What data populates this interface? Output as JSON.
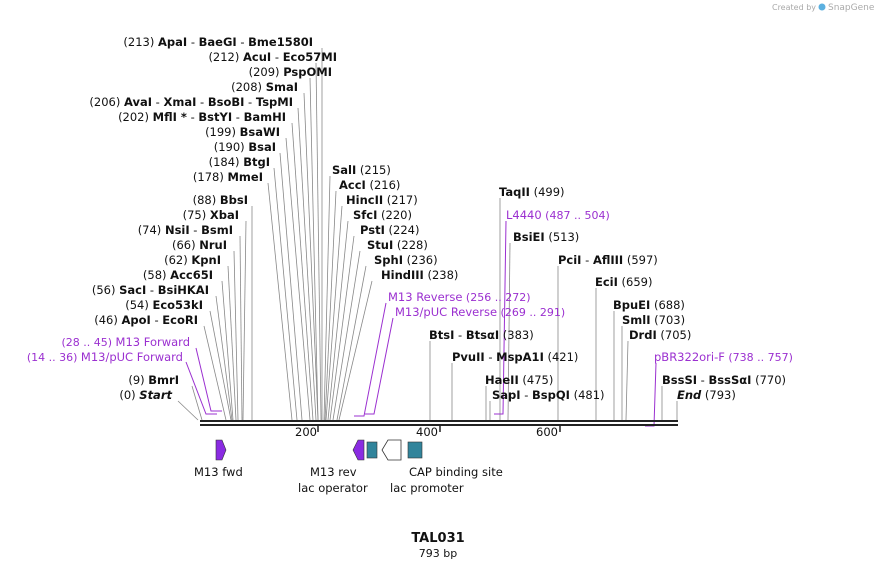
{
  "watermark": "Created by",
  "brand": "SnapGene",
  "map": {
    "title": "TAL031",
    "length_label": "793 bp",
    "length_bp": 793,
    "ticks": [
      "200",
      "400",
      "600"
    ]
  },
  "sites_left": [
    {
      "pos": "(213)",
      "names": [
        "ApaI",
        "BaeGI",
        "Bme1580I"
      ]
    },
    {
      "pos": "(212)",
      "names": [
        "AcuI",
        "Eco57MI"
      ]
    },
    {
      "pos": "(209)",
      "names": [
        "PspOMI"
      ]
    },
    {
      "pos": "(208)",
      "names": [
        "SmaI"
      ]
    },
    {
      "pos": "(206)",
      "names": [
        "AvaI",
        "XmaI",
        "BsoBI",
        "TspMI"
      ]
    },
    {
      "pos": "(202)",
      "names": [
        "MflI *",
        "BstYI",
        "BamHI"
      ]
    },
    {
      "pos": "(199)",
      "names": [
        "BsaWI"
      ]
    },
    {
      "pos": "(190)",
      "names": [
        "BsaI"
      ]
    },
    {
      "pos": "(184)",
      "names": [
        "BtgI"
      ]
    },
    {
      "pos": "(178)",
      "names": [
        "MmeI"
      ]
    },
    {
      "pos": "(88)",
      "names": [
        "BbsI"
      ]
    },
    {
      "pos": "(75)",
      "names": [
        "XbaI"
      ]
    },
    {
      "pos": "(74)",
      "names": [
        "NsiI",
        "BsmI"
      ]
    },
    {
      "pos": "(66)",
      "names": [
        "NruI"
      ]
    },
    {
      "pos": "(62)",
      "names": [
        "KpnI"
      ]
    },
    {
      "pos": "(58)",
      "names": [
        "Acc65I"
      ]
    },
    {
      "pos": "(56)",
      "names": [
        "SacI",
        "BsiHKAI"
      ]
    },
    {
      "pos": "(54)",
      "names": [
        "Eco53kI"
      ]
    },
    {
      "pos": "(46)",
      "names": [
        "ApoI",
        "EcoRI"
      ]
    },
    {
      "pos": "(9)",
      "names": [
        "BmrI"
      ]
    },
    {
      "pos": "(0)",
      "names": [
        "Start"
      ]
    }
  ],
  "sites_mid": [
    {
      "names": [
        "SalI"
      ],
      "pos": "(215)"
    },
    {
      "names": [
        "AccI"
      ],
      "pos": "(216)"
    },
    {
      "names": [
        "HincII"
      ],
      "pos": "(217)"
    },
    {
      "names": [
        "SfcI"
      ],
      "pos": "(220)"
    },
    {
      "names": [
        "PstI"
      ],
      "pos": "(224)"
    },
    {
      "names": [
        "StuI"
      ],
      "pos": "(228)"
    },
    {
      "names": [
        "SphI"
      ],
      "pos": "(236)"
    },
    {
      "names": [
        "HindIII"
      ],
      "pos": "(238)"
    },
    {
      "names": [
        "BtsI",
        "BtsαI"
      ],
      "pos": "(383)"
    },
    {
      "names": [
        "PvuII",
        "MspA1I"
      ],
      "pos": "(421)"
    },
    {
      "names": [
        "HaeII"
      ],
      "pos": "(475)"
    },
    {
      "names": [
        "SapI",
        "BspQI"
      ],
      "pos": "(481)"
    }
  ],
  "sites_right": [
    {
      "names": [
        "TaqII"
      ],
      "pos": "(499)"
    },
    {
      "names": [
        "BsiEI"
      ],
      "pos": "(513)"
    },
    {
      "names": [
        "PciI",
        "AflIII"
      ],
      "pos": "(597)"
    },
    {
      "names": [
        "EciI"
      ],
      "pos": "(659)"
    },
    {
      "names": [
        "BpuEI"
      ],
      "pos": "(688)"
    },
    {
      "names": [
        "SmlI"
      ],
      "pos": "(703)"
    },
    {
      "names": [
        "DrdI"
      ],
      "pos": "(705)"
    },
    {
      "names": [
        "BssSI",
        "BssSαI"
      ],
      "pos": "(770)"
    },
    {
      "names": [
        "End"
      ],
      "pos": "(793)"
    }
  ],
  "primers": [
    {
      "name": "M13 Forward",
      "range": "(28 .. 45)"
    },
    {
      "name": "M13/pUC Forward",
      "range": "(14 .. 36)"
    },
    {
      "name": "M13 Reverse",
      "range": "(256 .. 272)"
    },
    {
      "name": "M13/pUC Reverse",
      "range": "(269 .. 291)"
    },
    {
      "name": "L4440",
      "range": "(487 .. 504)"
    },
    {
      "name": "pBR322ori-F",
      "range": "(738 .. 757)"
    }
  ],
  "features": {
    "m13_fwd": "M13 fwd",
    "m13_rev": "M13 rev",
    "lac_operator": "lac operator",
    "lac_promoter": "lac promoter",
    "cap_site": "CAP binding site"
  },
  "colors": {
    "primer": "#9b30d0",
    "feature_teal": "#31849b",
    "feature_purple": "#8a2be2",
    "line": "#888888"
  }
}
